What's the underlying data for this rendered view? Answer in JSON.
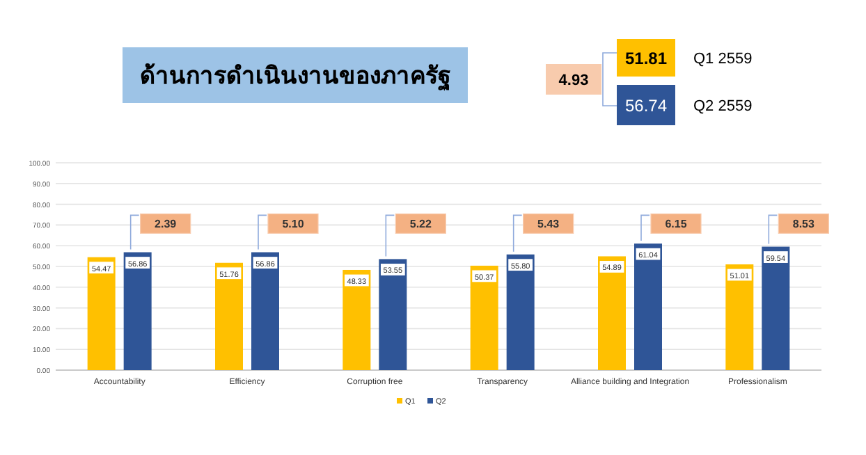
{
  "chart_data": [
    {
      "type": "bar",
      "title": "ด้านการดำเนินงานของภาครัฐ",
      "categories": [
        "Accountability",
        "Efficiency",
        "Corruption free",
        "Transparency",
        "Alliance building and Integration",
        "Professionalism"
      ],
      "series": [
        {
          "name": "Q1",
          "color": "#ffc000",
          "values": [
            54.47,
            51.76,
            48.33,
            50.37,
            54.89,
            51.01
          ],
          "value_labels": [
            "54.47",
            "51.76",
            "48.33",
            "50.37",
            "54.89",
            "51.01"
          ]
        },
        {
          "name": "Q2",
          "color": "#2f5597",
          "values": [
            56.86,
            56.86,
            53.55,
            55.8,
            61.04,
            59.54
          ],
          "value_labels": [
            "56.86",
            "56.86",
            "53.55",
            "55.80",
            "61.04",
            "59.54"
          ]
        }
      ],
      "ylim": [
        0,
        100
      ],
      "yticks": [
        {
          "value": 0,
          "label": "0.00"
        },
        {
          "value": 10,
          "label": "10.00"
        },
        {
          "value": 20,
          "label": "20.00"
        },
        {
          "value": 30,
          "label": "30.00"
        },
        {
          "value": 40,
          "label": "40.00"
        },
        {
          "value": 50,
          "label": "50.00"
        },
        {
          "value": 60,
          "label": "60.00"
        },
        {
          "value": 70,
          "label": "70.00"
        },
        {
          "value": 80,
          "label": "80.00"
        },
        {
          "value": 90,
          "label": "90.00"
        },
        {
          "value": 100,
          "label": "100.00"
        }
      ],
      "grid": "y",
      "legend": "bottom",
      "annotations": [
        "2.39",
        "5.10",
        "5.22",
        "5.43",
        "6.15",
        "8.53"
      ]
    },
    {
      "type": "other",
      "categories": [
        "Q1 2559",
        "Q2 2559"
      ],
      "values": [
        51.81,
        56.74
      ],
      "colors": [
        "#ffc000",
        "#2f5597"
      ],
      "data_labels": true,
      "annotations": [
        "4.93"
      ]
    }
  ]
}
